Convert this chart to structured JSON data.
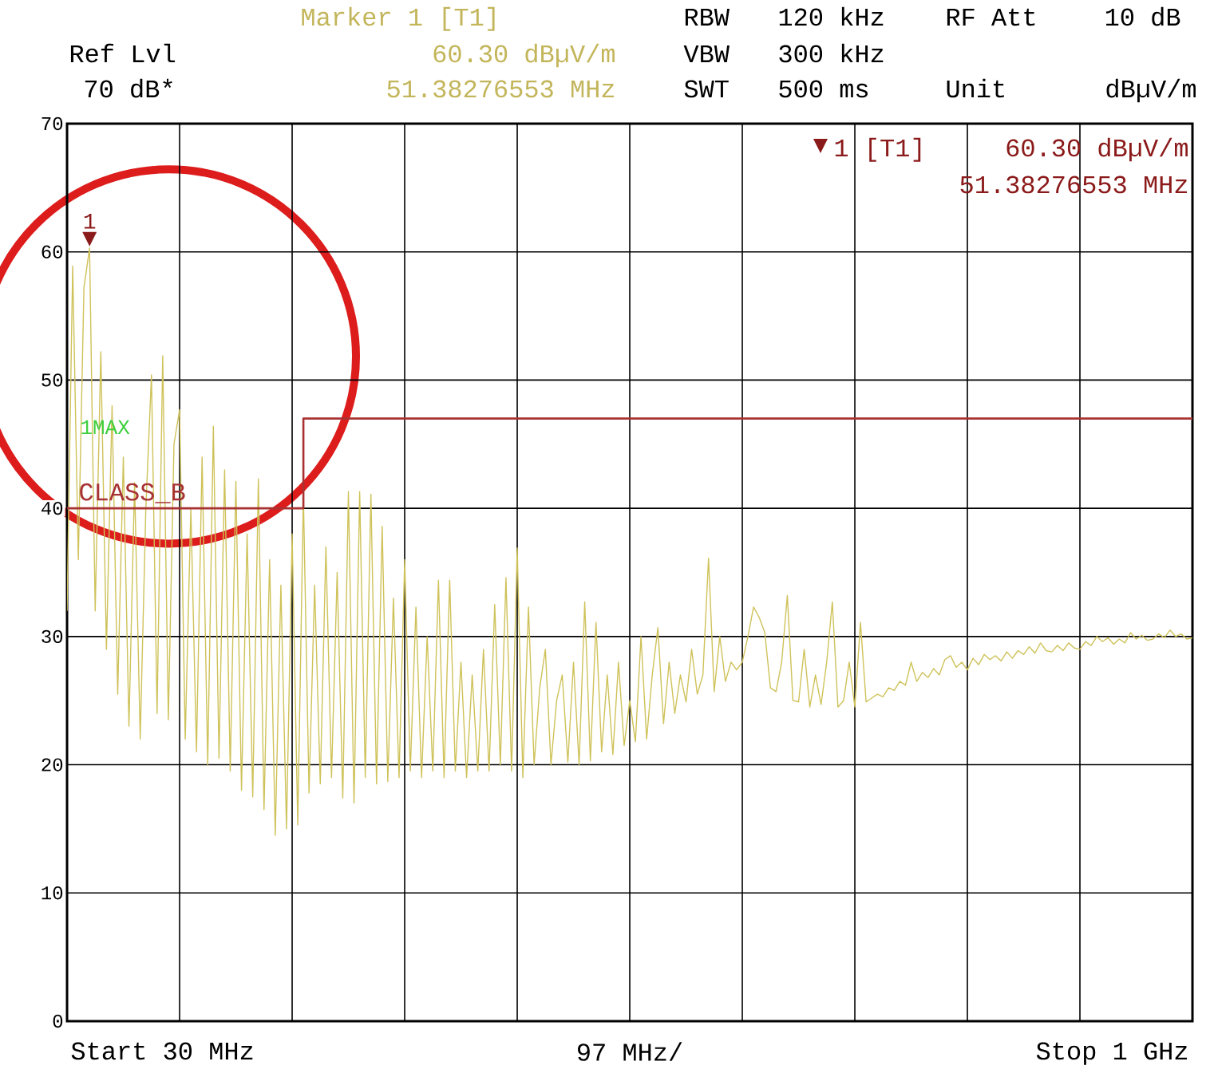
{
  "chart_data": {
    "type": "line",
    "annotations": [
      "Marker 1 [T1]",
      "60.30 dBµV/m",
      "51.38276553 MHz",
      "Ref Lvl",
      "70 dB*",
      "RBW",
      "120 kHz",
      "VBW",
      "300 kHz",
      "SWT",
      "500 ms",
      "RF Att",
      "10 dB",
      "Unit",
      "dBµV/m",
      {
        "text": "1",
        "y": 60.3
      },
      "1 [T1]",
      "60.30 dBµV/m",
      "51.38276553 MHz",
      "1MAX",
      "Start 30 MHz",
      "Stop 1 GHz"
    ],
    "xlabel": "97 MHz/",
    "categories": [
      null,
      null,
      null,
      null,
      null,
      null,
      null,
      null,
      null,
      null,
      null,
      null,
      null,
      null,
      null,
      null,
      null,
      null,
      null,
      null,
      null,
      null,
      null,
      null,
      null,
      null,
      null,
      null,
      null,
      null,
      null,
      null,
      null,
      null,
      null,
      null,
      null,
      null,
      null,
      null,
      null,
      null,
      null,
      null,
      null,
      null,
      null,
      null,
      null,
      null,
      null,
      null,
      null,
      null,
      null,
      null,
      null,
      null,
      null,
      null,
      null,
      null,
      null,
      null,
      null,
      null,
      null,
      null,
      null,
      null,
      null,
      null,
      null,
      null,
      null,
      null,
      null,
      null,
      null,
      null,
      null,
      null,
      null,
      null,
      null,
      null,
      null,
      null,
      null,
      null,
      null,
      null,
      null,
      null,
      null,
      null,
      null,
      null,
      null,
      null,
      null,
      null,
      null,
      null,
      null,
      null,
      null,
      null,
      null,
      null,
      null,
      null,
      null,
      null,
      null,
      null,
      null,
      null,
      null,
      null,
      null,
      null,
      null,
      null,
      null,
      null,
      null,
      null,
      null,
      null,
      null,
      null,
      null,
      null,
      null,
      null,
      null,
      null,
      null,
      null,
      null,
      null,
      null,
      null,
      null,
      null,
      null,
      null,
      null,
      null,
      null,
      null,
      null,
      null,
      null,
      null,
      null,
      null,
      null,
      null,
      null,
      null,
      null,
      null,
      null,
      null,
      null,
      null,
      null,
      null,
      null,
      null,
      null,
      null,
      null,
      null,
      null,
      null,
      null,
      null,
      null,
      null,
      null,
      null,
      null,
      null,
      null,
      null,
      null,
      null,
      null,
      null,
      null,
      null,
      null,
      null,
      null,
      null,
      null,
      null,
      null
    ],
    "series": [
      {
        "color": "#cfc25a",
        "values": [
          32,
          58.9,
          36,
          57.2,
          60.3,
          32,
          52.2,
          29,
          48,
          25.5,
          44,
          23,
          42,
          22,
          40,
          50.4,
          24,
          51.9,
          23.5,
          45,
          47.7,
          22,
          40,
          21,
          44,
          20,
          46.4,
          20.5,
          43,
          19.5,
          42.1,
          18,
          38,
          17.5,
          42.3,
          16.5,
          36,
          14.5,
          34,
          15,
          38,
          15.3,
          41,
          17.8,
          34,
          18.5,
          37,
          19,
          35,
          17.4,
          41.3,
          17,
          41.3,
          19,
          41.1,
          18.5,
          38.6,
          18.7,
          33,
          19,
          36,
          19.5,
          32.3,
          19,
          30,
          19.5,
          34.4,
          19,
          34.4,
          19.5,
          28,
          19,
          27,
          19.5,
          29,
          19.5,
          32.5,
          20,
          34.6,
          19.5,
          36.9,
          19,
          32.3,
          20,
          26,
          29,
          20,
          25,
          27,
          20.2,
          28,
          20,
          32.7,
          20.3,
          31.1,
          21,
          27,
          20.8,
          28,
          21.5,
          25,
          21.8,
          30,
          22,
          27,
          30.7,
          23.2,
          28,
          24,
          27,
          24.9,
          29,
          25.5,
          27,
          36.1,
          25.7,
          30,
          26.5,
          28,
          27.4,
          28,
          30,
          32.3,
          31.5,
          30.3,
          26,
          25.7,
          28,
          33.2,
          25,
          24.9,
          29,
          24.5,
          27,
          24.7,
          28,
          32.7,
          24.5,
          25,
          28,
          24.5,
          31.1,
          24.9,
          25.2,
          25.5,
          25.3,
          26,
          25.8,
          26.5,
          26.2,
          28,
          26.5,
          27.2,
          26.8,
          27.5,
          27,
          28.2,
          28.5,
          27.6,
          28,
          27.4,
          28.3,
          27.8,
          28.6,
          28.2,
          28.5,
          28.1,
          28.8,
          28.3,
          28.9,
          28.6,
          29.2,
          28.7,
          29.5,
          28.9,
          28.8,
          29.3,
          28.9,
          29.5,
          29.1,
          29,
          29.6,
          29.3,
          30,
          29.6,
          29.9,
          29.4,
          29.8,
          29.5,
          30.3,
          29.8,
          30.1,
          29.7,
          29.8,
          30.2,
          29.9,
          30.5,
          30,
          30.2,
          29.8,
          29.9
        ]
      },
      {
        "name": "CLASS_B",
        "type": "step",
        "color": "#a83232",
        "values": [
          40,
          40,
          40,
          40,
          40,
          40,
          40,
          40,
          40,
          40,
          40,
          40,
          40,
          40,
          40,
          40,
          40,
          40,
          40,
          40,
          40,
          40,
          40,
          40,
          40,
          40,
          40,
          40,
          40,
          40,
          40,
          40,
          40,
          40,
          40,
          40,
          40,
          40,
          40,
          40,
          40,
          40,
          47,
          47,
          47,
          47,
          47,
          47,
          47,
          47,
          47,
          47,
          47,
          47,
          47,
          47,
          47,
          47,
          47,
          47,
          47,
          47,
          47,
          47,
          47,
          47,
          47,
          47,
          47,
          47,
          47,
          47,
          47,
          47,
          47,
          47,
          47,
          47,
          47,
          47,
          47,
          47,
          47,
          47,
          47,
          47,
          47,
          47,
          47,
          47,
          47,
          47,
          47,
          47,
          47,
          47,
          47,
          47,
          47,
          47,
          47,
          47,
          47,
          47,
          47,
          47,
          47,
          47,
          47,
          47,
          47,
          47,
          47,
          47,
          47,
          47,
          47,
          47,
          47,
          47,
          47,
          47,
          47,
          47,
          47,
          47,
          47,
          47,
          47,
          47,
          47,
          47,
          47,
          47,
          47,
          47,
          47,
          47,
          47,
          47,
          47,
          47,
          47,
          47,
          47,
          47,
          47,
          47,
          47,
          47,
          47,
          47,
          47,
          47,
          47,
          47,
          47,
          47,
          47,
          47,
          47,
          47,
          47,
          47,
          47,
          47,
          47,
          47,
          47,
          47,
          47,
          47,
          47,
          47,
          47,
          47,
          47,
          47,
          47,
          47,
          47,
          47,
          47,
          47,
          47,
          47,
          47,
          47,
          47,
          47,
          47,
          47,
          47,
          47,
          47,
          47,
          47,
          47,
          47,
          47,
          47
        ]
      }
    ],
    "ylim": [
      0,
      70
    ],
    "yticks": [
      0,
      10,
      20,
      30,
      40,
      50,
      60,
      70
    ],
    "grid": true,
    "tick_labels": "y"
  }
}
